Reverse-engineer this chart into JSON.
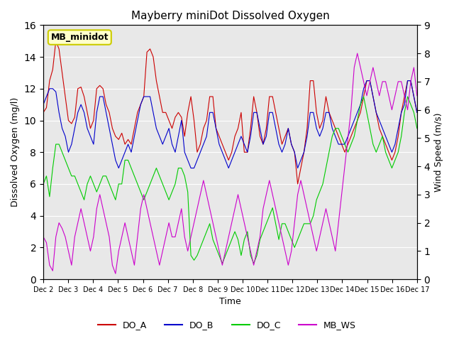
{
  "title": "Mayberry miniDot Dissolved Oxygen",
  "ylabel_left": "Dissolved Oxygen (mg/l)",
  "ylabel_right": "Wind Speed (m/s)",
  "xlabel": "Time",
  "ylim_left": [
    0,
    16
  ],
  "ylim_right": [
    0.0,
    9.0
  ],
  "yticks_left": [
    0,
    2,
    4,
    6,
    8,
    10,
    12,
    14,
    16
  ],
  "yticks_right": [
    0.0,
    1.0,
    2.0,
    3.0,
    4.0,
    5.0,
    6.0,
    7.0,
    8.0,
    9.0
  ],
  "xtick_labels": [
    "Dec 2",
    "Dec 3",
    "Dec 4",
    "Dec 5",
    "Dec 6",
    "Dec 7",
    "Dec 8",
    "Dec 9",
    "Dec 10",
    "Dec 11",
    "Dec 12",
    "Dec 13",
    "Dec 14",
    "Dec 15",
    "Dec 16",
    "Dec 17"
  ],
  "xtick_positions": [
    1,
    2,
    3,
    4,
    5,
    6,
    7,
    8,
    9,
    10,
    11,
    12,
    13,
    14,
    15,
    16
  ],
  "colors": {
    "DO_A": "#cc0000",
    "DO_B": "#0000cc",
    "DO_C": "#00cc00",
    "MB_WS": "#cc00cc"
  },
  "label_box": "MB_minidot",
  "label_box_bg": "#ffffcc",
  "label_box_edge": "#cccc00",
  "bg_color": "#e8e8e8",
  "legend_entries": [
    "DO_A",
    "DO_B",
    "DO_C",
    "MB_WS"
  ],
  "DO_A": [
    10.5,
    10.8,
    12.5,
    13.2,
    15.0,
    14.5,
    13.0,
    11.5,
    10.0,
    9.8,
    10.2,
    12.0,
    12.1,
    11.5,
    10.5,
    9.5,
    10.0,
    12.0,
    12.2,
    12.0,
    11.0,
    10.5,
    9.5,
    9.0,
    8.8,
    9.2,
    8.5,
    8.8,
    8.5,
    9.5,
    10.5,
    11.0,
    11.5,
    14.3,
    14.5,
    14.0,
    12.5,
    11.5,
    10.5,
    10.5,
    10.0,
    9.5,
    10.2,
    10.5,
    10.2,
    9.0,
    10.5,
    11.5,
    10.0,
    8.0,
    8.5,
    9.5,
    10.0,
    11.5,
    11.5,
    9.5,
    9.0,
    8.5,
    8.0,
    7.5,
    8.0,
    9.0,
    9.5,
    10.5,
    8.0,
    8.0,
    9.5,
    11.5,
    10.5,
    9.0,
    8.5,
    9.5,
    11.5,
    11.5,
    10.5,
    9.5,
    8.5,
    9.0,
    9.5,
    8.5,
    8.0,
    6.0,
    7.0,
    8.0,
    9.5,
    12.5,
    12.5,
    10.5,
    9.5,
    10.0,
    11.5,
    10.5,
    10.0,
    9.5,
    9.0,
    8.5,
    8.0,
    8.5,
    9.0,
    9.5,
    10.0,
    10.5,
    11.5,
    12.5,
    12.5,
    11.5,
    10.5,
    9.5,
    9.0,
    8.5,
    8.0,
    7.5,
    8.0,
    9.0,
    10.5,
    11.5,
    12.5,
    12.5,
    11.5,
    10.5
  ],
  "DO_B": [
    11.0,
    11.5,
    12.0,
    12.0,
    11.8,
    10.5,
    9.5,
    9.0,
    8.0,
    8.5,
    9.5,
    10.5,
    11.0,
    10.5,
    9.5,
    9.0,
    8.5,
    10.5,
    11.5,
    11.5,
    10.5,
    9.5,
    8.5,
    7.5,
    7.0,
    7.5,
    8.0,
    8.5,
    8.0,
    9.0,
    10.0,
    11.0,
    11.5,
    11.5,
    11.5,
    10.5,
    9.5,
    9.0,
    8.5,
    9.0,
    9.5,
    8.5,
    8.0,
    9.0,
    10.0,
    8.0,
    7.5,
    7.0,
    7.0,
    7.5,
    8.0,
    8.5,
    9.0,
    10.5,
    10.5,
    9.5,
    8.5,
    8.0,
    7.5,
    7.0,
    7.5,
    8.0,
    8.5,
    9.0,
    8.5,
    8.0,
    9.0,
    10.5,
    10.5,
    9.5,
    8.5,
    9.0,
    10.5,
    10.5,
    9.5,
    8.5,
    8.0,
    8.5,
    9.5,
    8.5,
    8.0,
    7.0,
    7.5,
    8.0,
    9.0,
    10.5,
    10.5,
    9.5,
    9.0,
    9.5,
    10.5,
    10.5,
    9.5,
    9.0,
    8.5,
    8.5,
    8.5,
    9.0,
    9.5,
    10.0,
    10.5,
    11.0,
    12.0,
    12.5,
    12.5,
    11.5,
    10.5,
    10.0,
    9.5,
    9.0,
    8.5,
    8.0,
    8.5,
    9.5,
    10.5,
    11.0,
    12.5,
    12.5,
    11.5,
    10.5
  ],
  "DO_C": [
    6.0,
    6.5,
    5.2,
    7.0,
    8.5,
    8.5,
    8.0,
    7.5,
    7.0,
    6.5,
    6.5,
    6.0,
    5.5,
    5.0,
    6.0,
    6.5,
    6.0,
    5.5,
    6.0,
    6.5,
    6.5,
    6.0,
    5.5,
    5.0,
    6.0,
    6.0,
    7.5,
    7.5,
    7.0,
    6.5,
    6.0,
    5.5,
    5.0,
    5.5,
    6.0,
    6.5,
    7.0,
    6.5,
    6.0,
    5.5,
    5.0,
    5.5,
    6.0,
    7.0,
    7.0,
    6.5,
    5.5,
    1.5,
    1.2,
    1.5,
    2.0,
    2.5,
    3.0,
    3.5,
    2.5,
    2.0,
    1.5,
    1.0,
    1.5,
    2.0,
    2.5,
    3.0,
    2.5,
    1.5,
    2.5,
    3.0,
    1.5,
    1.0,
    1.5,
    2.5,
    3.0,
    3.5,
    4.0,
    4.5,
    3.5,
    2.5,
    3.5,
    3.5,
    3.0,
    2.5,
    2.0,
    2.5,
    3.0,
    3.5,
    3.5,
    3.5,
    4.0,
    5.0,
    5.5,
    6.0,
    7.0,
    8.0,
    9.0,
    9.5,
    9.5,
    9.0,
    8.5,
    8.0,
    8.5,
    9.0,
    10.0,
    11.0,
    11.5,
    10.5,
    9.5,
    8.5,
    8.0,
    8.5,
    9.0,
    8.0,
    7.5,
    7.0,
    7.5,
    8.0,
    9.0,
    10.5,
    11.5,
    11.0,
    10.5,
    9.5
  ],
  "MB_WS": [
    1.5,
    1.3,
    0.5,
    0.3,
    1.5,
    2.0,
    1.8,
    1.5,
    1.0,
    0.5,
    1.5,
    2.0,
    2.5,
    2.0,
    1.5,
    1.0,
    1.5,
    2.5,
    3.0,
    2.5,
    2.0,
    1.5,
    0.5,
    0.2,
    1.0,
    1.5,
    2.0,
    1.5,
    1.0,
    0.5,
    1.5,
    2.5,
    3.0,
    2.5,
    2.0,
    1.5,
    1.0,
    0.5,
    1.0,
    1.5,
    2.0,
    1.5,
    1.5,
    2.0,
    2.5,
    1.5,
    1.0,
    1.5,
    2.0,
    2.5,
    3.0,
    3.5,
    3.0,
    2.5,
    2.0,
    1.5,
    1.0,
    0.5,
    1.0,
    1.5,
    2.0,
    2.5,
    3.0,
    2.5,
    2.0,
    1.5,
    1.0,
    0.5,
    1.0,
    1.5,
    2.5,
    3.0,
    3.5,
    3.0,
    2.5,
    2.0,
    1.5,
    1.0,
    0.5,
    1.0,
    2.0,
    3.0,
    3.5,
    3.0,
    2.5,
    2.0,
    1.5,
    1.0,
    1.5,
    2.0,
    2.5,
    2.0,
    1.5,
    1.0,
    2.0,
    3.0,
    4.0,
    5.0,
    6.0,
    7.5,
    8.0,
    7.5,
    7.0,
    6.5,
    7.0,
    7.5,
    7.0,
    6.5,
    7.0,
    7.0,
    6.5,
    6.0,
    6.5,
    7.0,
    7.0,
    6.5,
    6.0,
    7.0,
    7.5,
    6.5
  ]
}
